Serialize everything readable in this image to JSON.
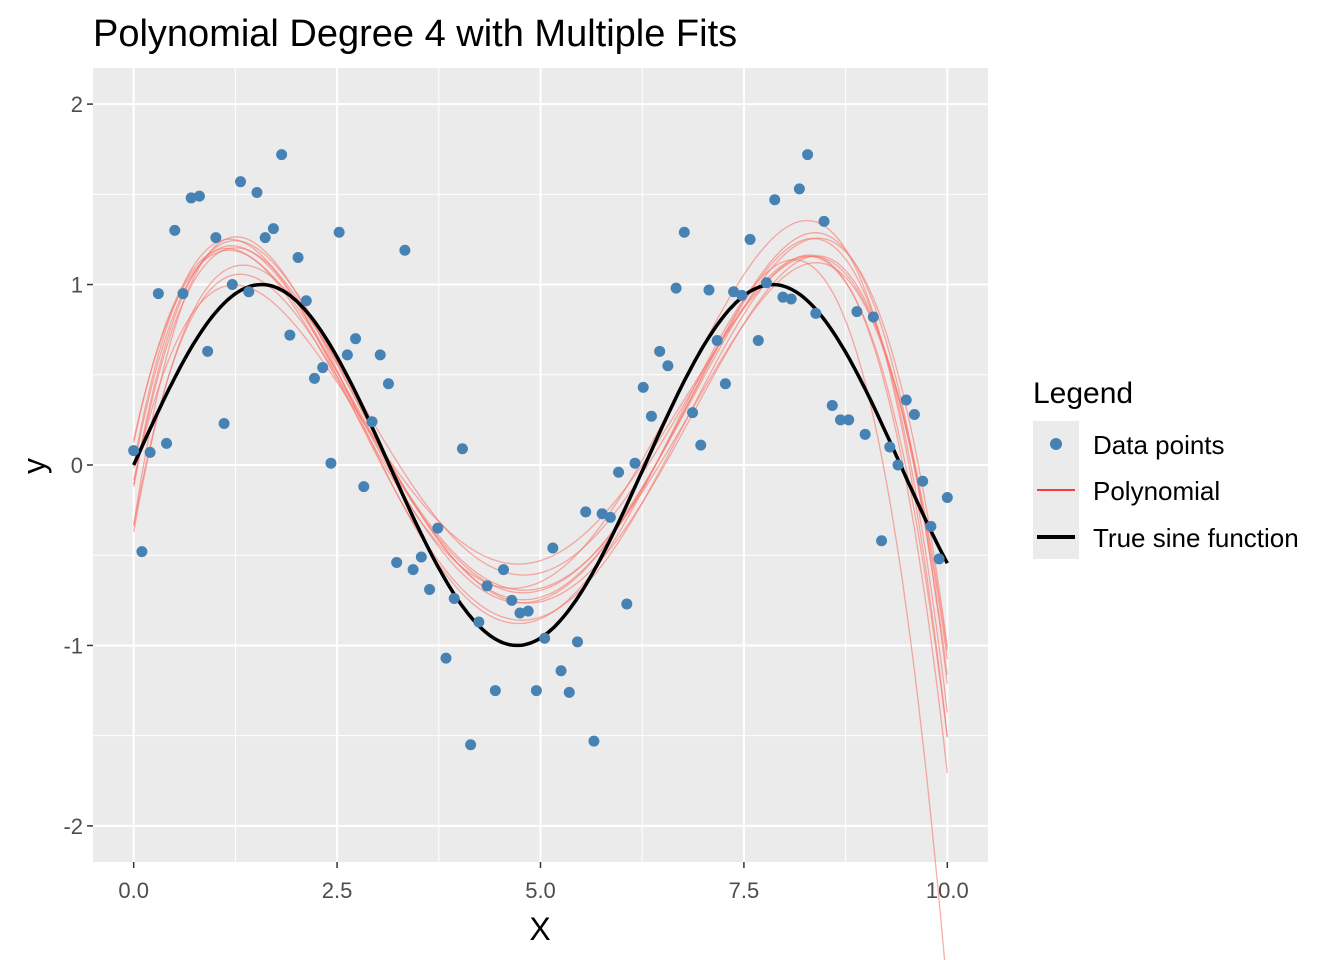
{
  "chart_data": {
    "type": "scatter",
    "title": "Polynomial Degree 4 with Multiple Fits",
    "xlabel": "X",
    "ylabel": "y",
    "xlim": [
      -0.5,
      10.5
    ],
    "ylim": [
      -2.2,
      2.2
    ],
    "grid": true,
    "x_ticks": [
      0,
      2.5,
      5,
      7.5,
      10
    ],
    "x_tick_labels": [
      "0.0",
      "2.5",
      "5.0",
      "7.5",
      "10.0"
    ],
    "y_ticks": [
      -2,
      -1,
      0,
      1,
      2
    ],
    "y_tick_labels": [
      "-2",
      "-1",
      "0",
      "1",
      "2"
    ],
    "legend": {
      "title": "Legend",
      "placement": "right",
      "entries": [
        {
          "label": "Data points",
          "type": "point",
          "color": "#4682B4"
        },
        {
          "label": "Polynomial",
          "type": "line",
          "color": "#FF0000"
        },
        {
          "label": "True sine function",
          "type": "line",
          "color": "#000000"
        }
      ]
    },
    "points": {
      "name": "Data points",
      "color": "#4682B4",
      "x_range": [
        0,
        10
      ],
      "y": [
        0.08,
        -0.48,
        0.07,
        0.95,
        0.12,
        1.3,
        0.95,
        1.48,
        1.49,
        0.63,
        1.26,
        0.23,
        1.0,
        1.57,
        0.96,
        1.51,
        1.26,
        1.31,
        1.72,
        0.72,
        1.15,
        0.91,
        0.48,
        0.54,
        0.01,
        1.29,
        0.61,
        0.7,
        -0.12,
        0.24,
        0.61,
        0.45,
        -0.54,
        1.19,
        -0.58,
        -0.51,
        -0.69,
        -0.35,
        -1.07,
        -0.74,
        0.09,
        -1.55,
        -0.87,
        -0.67,
        -1.25,
        -0.58,
        -0.75,
        -0.82,
        -0.81,
        -1.25,
        -0.96,
        -0.46,
        -1.14,
        -1.26,
        -0.98,
        -0.26,
        -1.53,
        -0.27,
        -0.29,
        -0.04,
        -0.77,
        0.01,
        0.43,
        0.27,
        0.63,
        0.55,
        0.98,
        1.29,
        0.29,
        0.11,
        0.97,
        0.69,
        0.45,
        0.96,
        0.94,
        1.25,
        0.69,
        1.01,
        1.47,
        0.93,
        0.92,
        1.53,
        1.72,
        0.84,
        1.35,
        0.33,
        0.25,
        0.25,
        0.85,
        0.17,
        0.82,
        -0.42,
        0.1,
        0.0,
        0.36,
        0.28,
        -0.09,
        -0.34,
        -0.52,
        -0.18
      ]
    },
    "polynomial": {
      "name": "Polynomial",
      "degree": 4,
      "n_fits": 10,
      "color": "#F8766D"
    },
    "true_function": {
      "name": "True sine function",
      "expression": "sin(x)",
      "color": "#000000"
    }
  }
}
